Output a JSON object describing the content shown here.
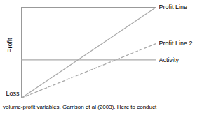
{
  "chart_data": {
    "type": "line",
    "ylabel": "Profit",
    "annotations": [
      "Loss"
    ],
    "caption": "volume-profit variables. Garrison et al (2003). Here to conduct",
    "x": [
      0.0,
      1.0
    ],
    "series": [
      {
        "name": "Profit Line",
        "color": "#aaaaaa",
        "line_style": "solid",
        "values": [
          0.0,
          1.0
        ]
      },
      {
        "name": "Profit Line 2",
        "color": "#aaaaaa",
        "line_style": "dashed",
        "values": [
          0.0,
          0.6
        ]
      },
      {
        "name": "Activity",
        "color": "#aaaaaa",
        "line_style": "solid",
        "values": [
          0.42,
          0.42
        ]
      }
    ],
    "xlim": [
      0,
      1
    ],
    "ylim": [
      0,
      1
    ],
    "tick_labels": false,
    "grid": false
  }
}
